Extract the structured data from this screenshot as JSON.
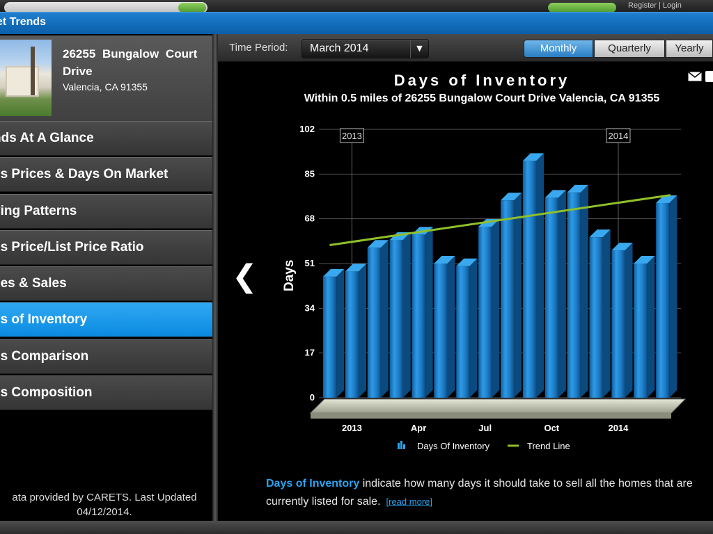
{
  "top_bar": {
    "links": "Register | Login"
  },
  "app": {
    "title": "ket Trends"
  },
  "property": {
    "address_line1": "26255 Bungalow Court Drive",
    "address_line2": "Valencia, CA 91355"
  },
  "sidebar": {
    "items": [
      {
        "label": "nds At A Glance",
        "active": false
      },
      {
        "label": "es Prices & Days On Market",
        "active": false
      },
      {
        "label": "ying Patterns",
        "active": false
      },
      {
        "label": "es Price/List Price Ratio",
        "active": false
      },
      {
        "label": "ces & Sales",
        "active": false
      },
      {
        "label": "ys of Inventory",
        "active": true
      },
      {
        "label": "es Comparison",
        "active": false
      },
      {
        "label": "es Composition",
        "active": false
      }
    ],
    "footnote": "ata provided by CARETS.  Last Updated 04/12/2014."
  },
  "toolbar": {
    "time_period_label": "Time Period:",
    "time_period_value": "March 2014",
    "segments": [
      "Monthly",
      "Quarterly",
      "Yearly"
    ],
    "active_segment": "Monthly"
  },
  "chart_data": {
    "type": "bar",
    "title": "Days of Inventory",
    "subtitle": "Within 0.5 miles of 26255 Bungalow Court Drive Valencia, CA 91355",
    "ylabel": "Days",
    "ylim": [
      0,
      102
    ],
    "yticks": [
      0,
      17,
      34,
      51,
      68,
      85,
      102
    ],
    "x_tick_labels": [
      "2013",
      "Apr",
      "Jul",
      "Oct",
      "2014"
    ],
    "year_markers": [
      "2013",
      "2014"
    ],
    "values": [
      46,
      48,
      57,
      60,
      62,
      51,
      50,
      65,
      75,
      90,
      76,
      78,
      61,
      56,
      51,
      74
    ],
    "trend_line": [
      58,
      77
    ],
    "legend": [
      "Days Of Inventory",
      "Trend Line"
    ],
    "colors": {
      "bar": "#1f8ad6",
      "trend": "#8fbf2a",
      "grid": "#555555"
    }
  },
  "description": {
    "term": "Days of Inventory",
    "text": " indicate how many days it should take to sell all the homes that are currently listed for sale.",
    "read_more": "[read more]"
  }
}
